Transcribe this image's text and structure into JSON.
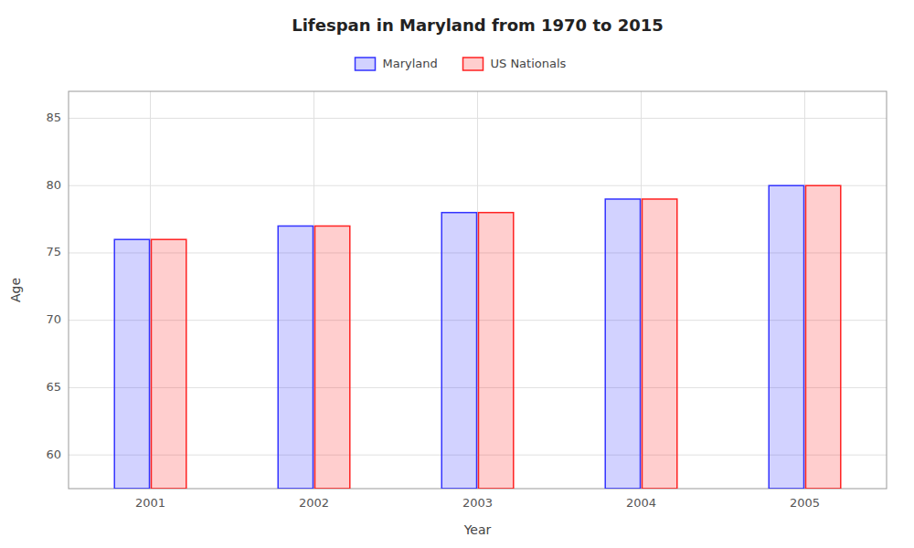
{
  "chart_data": {
    "type": "bar",
    "title": "Lifespan in Maryland from 1970 to 2015",
    "xlabel": "Year",
    "ylabel": "Age",
    "categories": [
      "2001",
      "2002",
      "2003",
      "2004",
      "2005"
    ],
    "series": [
      {
        "name": "Maryland",
        "color": "#3333ff",
        "values": [
          76,
          77,
          78,
          79,
          80
        ]
      },
      {
        "name": "US Nationals",
        "color": "#ff2222",
        "values": [
          76,
          77,
          78,
          79,
          80
        ]
      }
    ],
    "ylim": [
      57.5,
      87
    ],
    "yticks": [
      60,
      65,
      70,
      75,
      80,
      85
    ],
    "grid": true,
    "legend": "top"
  }
}
